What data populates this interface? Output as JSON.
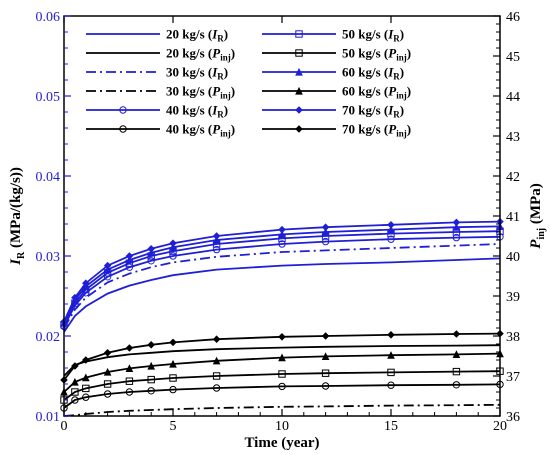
{
  "chart_data": {
    "type": "line",
    "xlabel": "Time (year)",
    "ylabel_left": {
      "main": "I",
      "sub": "R",
      "unit": " (MPa/(kg/s))"
    },
    "ylabel_right": {
      "main": "P",
      "sub": "inj",
      "unit": " (MPa)"
    },
    "xlim": [
      0,
      20
    ],
    "ylim_left": [
      0.01,
      0.06
    ],
    "ylim_right": [
      36,
      46
    ],
    "x_ticks": [
      "0",
      "5",
      "10",
      "15",
      "20"
    ],
    "y_left_ticks": [
      "0.01",
      "0.02",
      "0.03",
      "0.04",
      "0.05",
      "0.06"
    ],
    "y_right_ticks": [
      "36",
      "37",
      "38",
      "39",
      "40",
      "41",
      "42",
      "43",
      "44",
      "45",
      "46"
    ],
    "colors": {
      "ir": "#1f1fd6",
      "pinj": "#000000"
    },
    "legend": [
      {
        "pre": "20 kg/s (",
        "main": "I",
        "sub": "R",
        "post": ")"
      },
      {
        "pre": "20 kg/s (",
        "main": "P",
        "sub": "inj",
        "post": ")"
      },
      {
        "pre": "30 kg/s (",
        "main": "I",
        "sub": "R",
        "post": ")"
      },
      {
        "pre": "30 kg/s (",
        "main": "P",
        "sub": "inj",
        "post": ")"
      },
      {
        "pre": "40 kg/s (",
        "main": "I",
        "sub": "R",
        "post": ")"
      },
      {
        "pre": "40 kg/s (",
        "main": "P",
        "sub": "inj",
        "post": ")"
      },
      {
        "pre": "50 kg/s (",
        "main": "I",
        "sub": "R",
        "post": ")"
      },
      {
        "pre": "50 kg/s (",
        "main": "P",
        "sub": "inj",
        "post": ")"
      },
      {
        "pre": "60 kg/s (",
        "main": "I",
        "sub": "R",
        "post": ")"
      },
      {
        "pre": "60 kg/s (",
        "main": "P",
        "sub": "inj",
        "post": ")"
      },
      {
        "pre": "70 kg/s (",
        "main": "I",
        "sub": "R",
        "post": ")"
      },
      {
        "pre": "70 kg/s (",
        "main": "P",
        "sub": "inj",
        "post": ")"
      }
    ],
    "series": [
      {
        "name": "20 kg/s (IR)",
        "axis": "left",
        "color": "ir",
        "dash": "solid",
        "marker": "none",
        "x": [
          0,
          0.5,
          1,
          2,
          3,
          4,
          5,
          7,
          10,
          12,
          15,
          18,
          20
        ],
        "y": [
          0.0205,
          0.0225,
          0.0237,
          0.0253,
          0.0263,
          0.027,
          0.0276,
          0.0283,
          0.0288,
          0.029,
          0.0292,
          0.0295,
          0.0297
        ]
      },
      {
        "name": "30 kg/s (IR)",
        "axis": "left",
        "color": "ir",
        "dash": "dashdot",
        "marker": "none",
        "x": [
          0,
          0.5,
          1,
          2,
          3,
          4,
          5,
          7,
          10,
          12,
          15,
          18,
          20
        ],
        "y": [
          0.021,
          0.0233,
          0.0248,
          0.0267,
          0.0278,
          0.0286,
          0.0292,
          0.0299,
          0.0305,
          0.0307,
          0.031,
          0.0313,
          0.0315
        ]
      },
      {
        "name": "40 kg/s (IR)",
        "axis": "left",
        "color": "ir",
        "dash": "solid",
        "marker": "circle",
        "x": [
          0,
          0.5,
          1,
          2,
          3,
          4,
          5,
          7,
          10,
          12,
          15,
          18,
          20
        ],
        "y": [
          0.0212,
          0.0238,
          0.0254,
          0.0274,
          0.0286,
          0.0294,
          0.03,
          0.0308,
          0.0315,
          0.0318,
          0.0321,
          0.0323,
          0.0324
        ]
      },
      {
        "name": "50 kg/s (IR)",
        "axis": "left",
        "color": "ir",
        "dash": "solid",
        "marker": "square",
        "x": [
          0,
          0.5,
          1,
          2,
          3,
          4,
          5,
          7,
          10,
          12,
          15,
          18,
          20
        ],
        "y": [
          0.0214,
          0.0241,
          0.0258,
          0.0279,
          0.0291,
          0.03,
          0.0306,
          0.0315,
          0.0322,
          0.0325,
          0.0328,
          0.033,
          0.0331
        ]
      },
      {
        "name": "60 kg/s (IR)",
        "axis": "left",
        "color": "ir",
        "dash": "solid",
        "marker": "triangle",
        "x": [
          0,
          0.5,
          1,
          2,
          3,
          4,
          5,
          7,
          10,
          12,
          15,
          18,
          20
        ],
        "y": [
          0.0216,
          0.0245,
          0.0262,
          0.0283,
          0.0295,
          0.0304,
          0.0311,
          0.032,
          0.0327,
          0.033,
          0.0333,
          0.0336,
          0.0337
        ]
      },
      {
        "name": "70 kg/s (IR)",
        "axis": "left",
        "color": "ir",
        "dash": "solid",
        "marker": "diamond",
        "x": [
          0,
          0.5,
          1,
          2,
          3,
          4,
          5,
          7,
          10,
          12,
          15,
          18,
          20
        ],
        "y": [
          0.0218,
          0.0248,
          0.0266,
          0.0288,
          0.03,
          0.0309,
          0.0316,
          0.0325,
          0.0333,
          0.0336,
          0.0339,
          0.0342,
          0.0343
        ]
      },
      {
        "name": "20 kg/s (Pinj)",
        "axis": "right",
        "color": "pinj",
        "dash": "solid",
        "marker": "none",
        "x": [
          0,
          0.5,
          1,
          2,
          3,
          4,
          5,
          7,
          10,
          12,
          15,
          18,
          20
        ],
        "y": [
          37.0,
          37.28,
          37.36,
          37.47,
          37.54,
          37.58,
          37.62,
          37.67,
          37.71,
          37.73,
          37.75,
          37.76,
          37.77
        ]
      },
      {
        "name": "30 kg/s (Pinj)",
        "axis": "right",
        "color": "pinj",
        "dash": "dashdot",
        "marker": "none",
        "x": [
          0,
          0.5,
          1,
          2,
          3,
          4,
          5,
          7,
          10,
          12,
          15,
          18,
          20
        ],
        "y": [
          35.95,
          36.02,
          36.05,
          36.1,
          36.13,
          36.15,
          36.17,
          36.2,
          36.23,
          36.24,
          36.26,
          36.27,
          36.28
        ]
      },
      {
        "name": "40 kg/s (Pinj)",
        "axis": "right",
        "color": "pinj",
        "dash": "solid",
        "marker": "circle",
        "x": [
          0,
          0.5,
          1,
          2,
          3,
          4,
          5,
          7,
          10,
          12,
          15,
          18,
          20
        ],
        "y": [
          36.2,
          36.4,
          36.47,
          36.55,
          36.6,
          36.63,
          36.66,
          36.7,
          36.74,
          36.75,
          36.77,
          36.78,
          36.79
        ]
      },
      {
        "name": "50 kg/s (Pinj)",
        "axis": "right",
        "color": "pinj",
        "dash": "solid",
        "marker": "square",
        "x": [
          0,
          0.5,
          1,
          2,
          3,
          4,
          5,
          7,
          10,
          12,
          15,
          18,
          20
        ],
        "y": [
          36.4,
          36.6,
          36.69,
          36.8,
          36.87,
          36.91,
          36.95,
          37.0,
          37.05,
          37.07,
          37.09,
          37.11,
          37.12
        ]
      },
      {
        "name": "60 kg/s (Pinj)",
        "axis": "right",
        "color": "pinj",
        "dash": "solid",
        "marker": "triangle",
        "x": [
          0,
          0.5,
          1,
          2,
          3,
          4,
          5,
          7,
          10,
          12,
          15,
          18,
          20
        ],
        "y": [
          36.6,
          36.85,
          36.96,
          37.1,
          37.19,
          37.25,
          37.3,
          37.38,
          37.46,
          37.49,
          37.52,
          37.54,
          37.56
        ]
      },
      {
        "name": "70 kg/s (Pinj)",
        "axis": "right",
        "color": "pinj",
        "dash": "solid",
        "marker": "diamond",
        "x": [
          0,
          0.5,
          1,
          2,
          3,
          4,
          5,
          7,
          10,
          12,
          15,
          18,
          20
        ],
        "y": [
          36.9,
          37.25,
          37.4,
          37.58,
          37.7,
          37.78,
          37.84,
          37.92,
          37.98,
          38.0,
          38.03,
          38.05,
          38.06
        ]
      }
    ]
  }
}
